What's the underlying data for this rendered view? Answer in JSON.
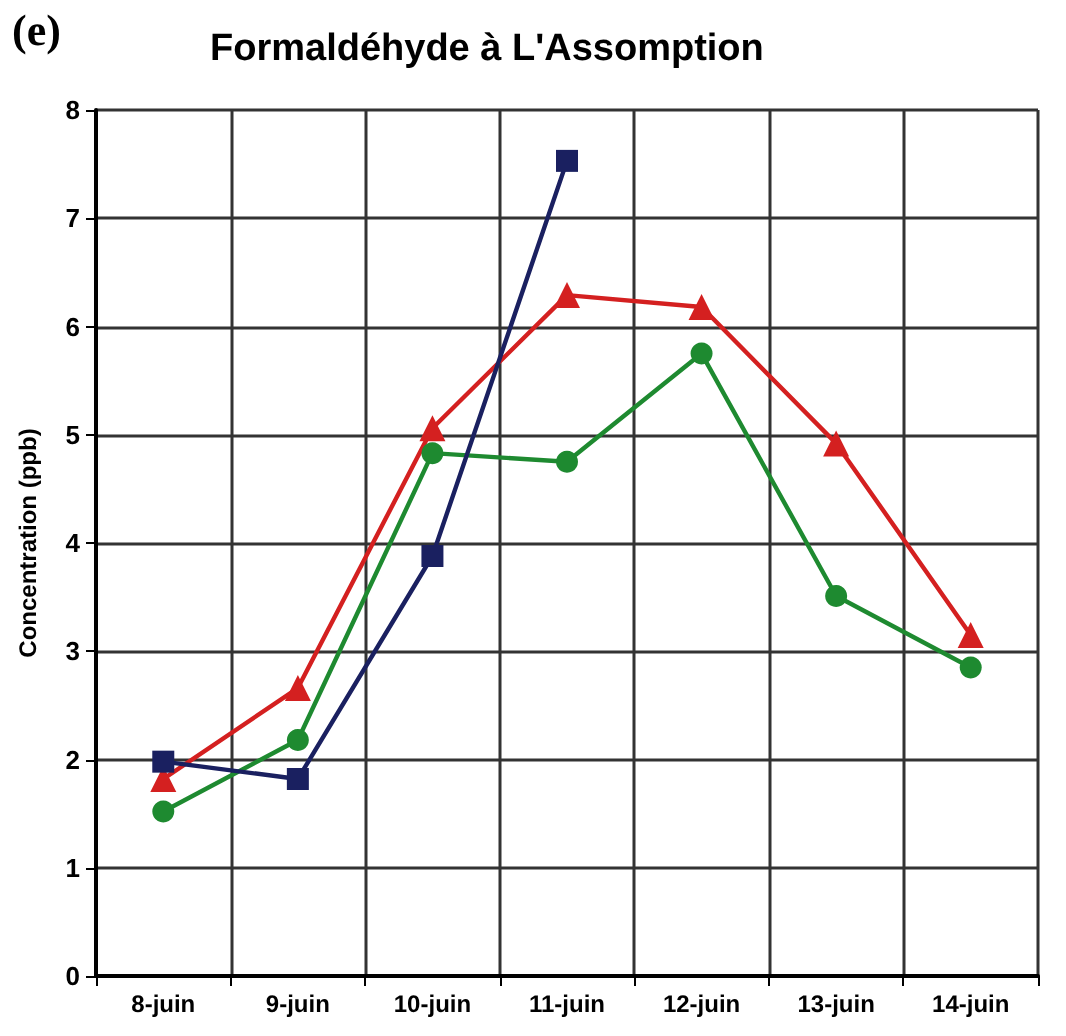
{
  "chart_data": {
    "type": "line",
    "title": "Formaldéhyde à L'Assomption",
    "annotations": [
      "(e)"
    ],
    "ylabel": "Concentration (ppb)",
    "categories": [
      "8-juin",
      "9-juin",
      "10-juin",
      "11-juin",
      "12-juin",
      "13-juin",
      "14-juin"
    ],
    "series": [
      {
        "color": "#d42020",
        "marker": "triangle",
        "values": [
          1.82,
          2.66,
          5.06,
          6.29,
          6.18,
          4.92,
          3.15
        ]
      },
      {
        "color": "#1e8a30",
        "marker": "circle",
        "values": [
          1.52,
          2.18,
          4.83,
          4.75,
          5.75,
          3.51,
          2.85
        ]
      },
      {
        "color": "#1a2060",
        "marker": "square",
        "values": [
          1.98,
          1.82,
          3.88,
          7.53,
          null,
          null,
          null
        ]
      }
    ],
    "ylim": [
      0,
      8
    ],
    "yticks": [
      0,
      1,
      2,
      3,
      4,
      5,
      6,
      7,
      8
    ],
    "grid": true
  }
}
